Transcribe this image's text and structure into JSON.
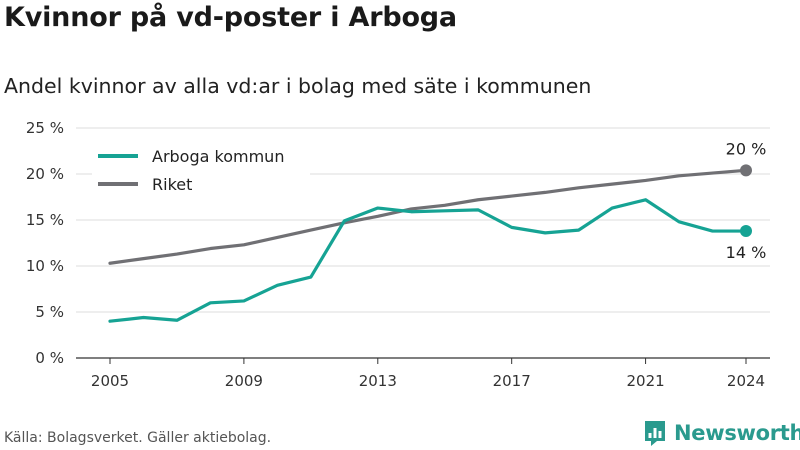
{
  "title": "Kvinnor på vd-poster i Arboga",
  "subtitle": "Andel kvinnor av alla vd:ar i bolag med säte i kommunen",
  "source": "Källa: Bolagsverket. Gäller aktiebolag.",
  "logo_text": "Newsworthy",
  "colors": {
    "arboga": "#16a394",
    "riket": "#707074",
    "grid": "#dddddd",
    "axis": "#333333",
    "logo": "#2a9a8e"
  },
  "chart_data": {
    "type": "line",
    "title": "Kvinnor på vd-poster i Arboga",
    "subtitle": "Andel kvinnor av alla vd:ar i bolag med säte i kommunen",
    "x": [
      2005,
      2006,
      2007,
      2008,
      2009,
      2010,
      2011,
      2012,
      2013,
      2014,
      2015,
      2016,
      2017,
      2018,
      2019,
      2020,
      2021,
      2022,
      2023,
      2024
    ],
    "x_ticks": [
      "2005",
      "2009",
      "2013",
      "2017",
      "2021",
      "2024"
    ],
    "x_tick_values": [
      2005,
      2009,
      2013,
      2017,
      2021,
      2024
    ],
    "y_ticks": [
      "0 %",
      "5 %",
      "10 %",
      "15 %",
      "20 %",
      "25 %"
    ],
    "y_tick_values": [
      0,
      5,
      10,
      15,
      20,
      25
    ],
    "ylim": [
      0,
      25
    ],
    "xlim": [
      2005,
      2024
    ],
    "grid": "horizontal",
    "legend_position": "top-left",
    "series": [
      {
        "name": "Arboga kommun",
        "color": "#16a394",
        "values": [
          4.0,
          4.4,
          4.1,
          6.0,
          6.2,
          7.9,
          8.8,
          14.9,
          16.3,
          15.9,
          16.0,
          16.1,
          14.2,
          13.6,
          13.9,
          16.3,
          17.2,
          14.8,
          13.8,
          13.8
        ],
        "end_label": "14 %"
      },
      {
        "name": "Riket",
        "color": "#707074",
        "values": [
          10.3,
          10.8,
          11.3,
          11.9,
          12.3,
          13.1,
          13.9,
          14.7,
          15.4,
          16.2,
          16.6,
          17.2,
          17.6,
          18.0,
          18.5,
          18.9,
          19.3,
          19.8,
          20.1,
          20.4
        ],
        "end_label": "20 %"
      }
    ]
  }
}
